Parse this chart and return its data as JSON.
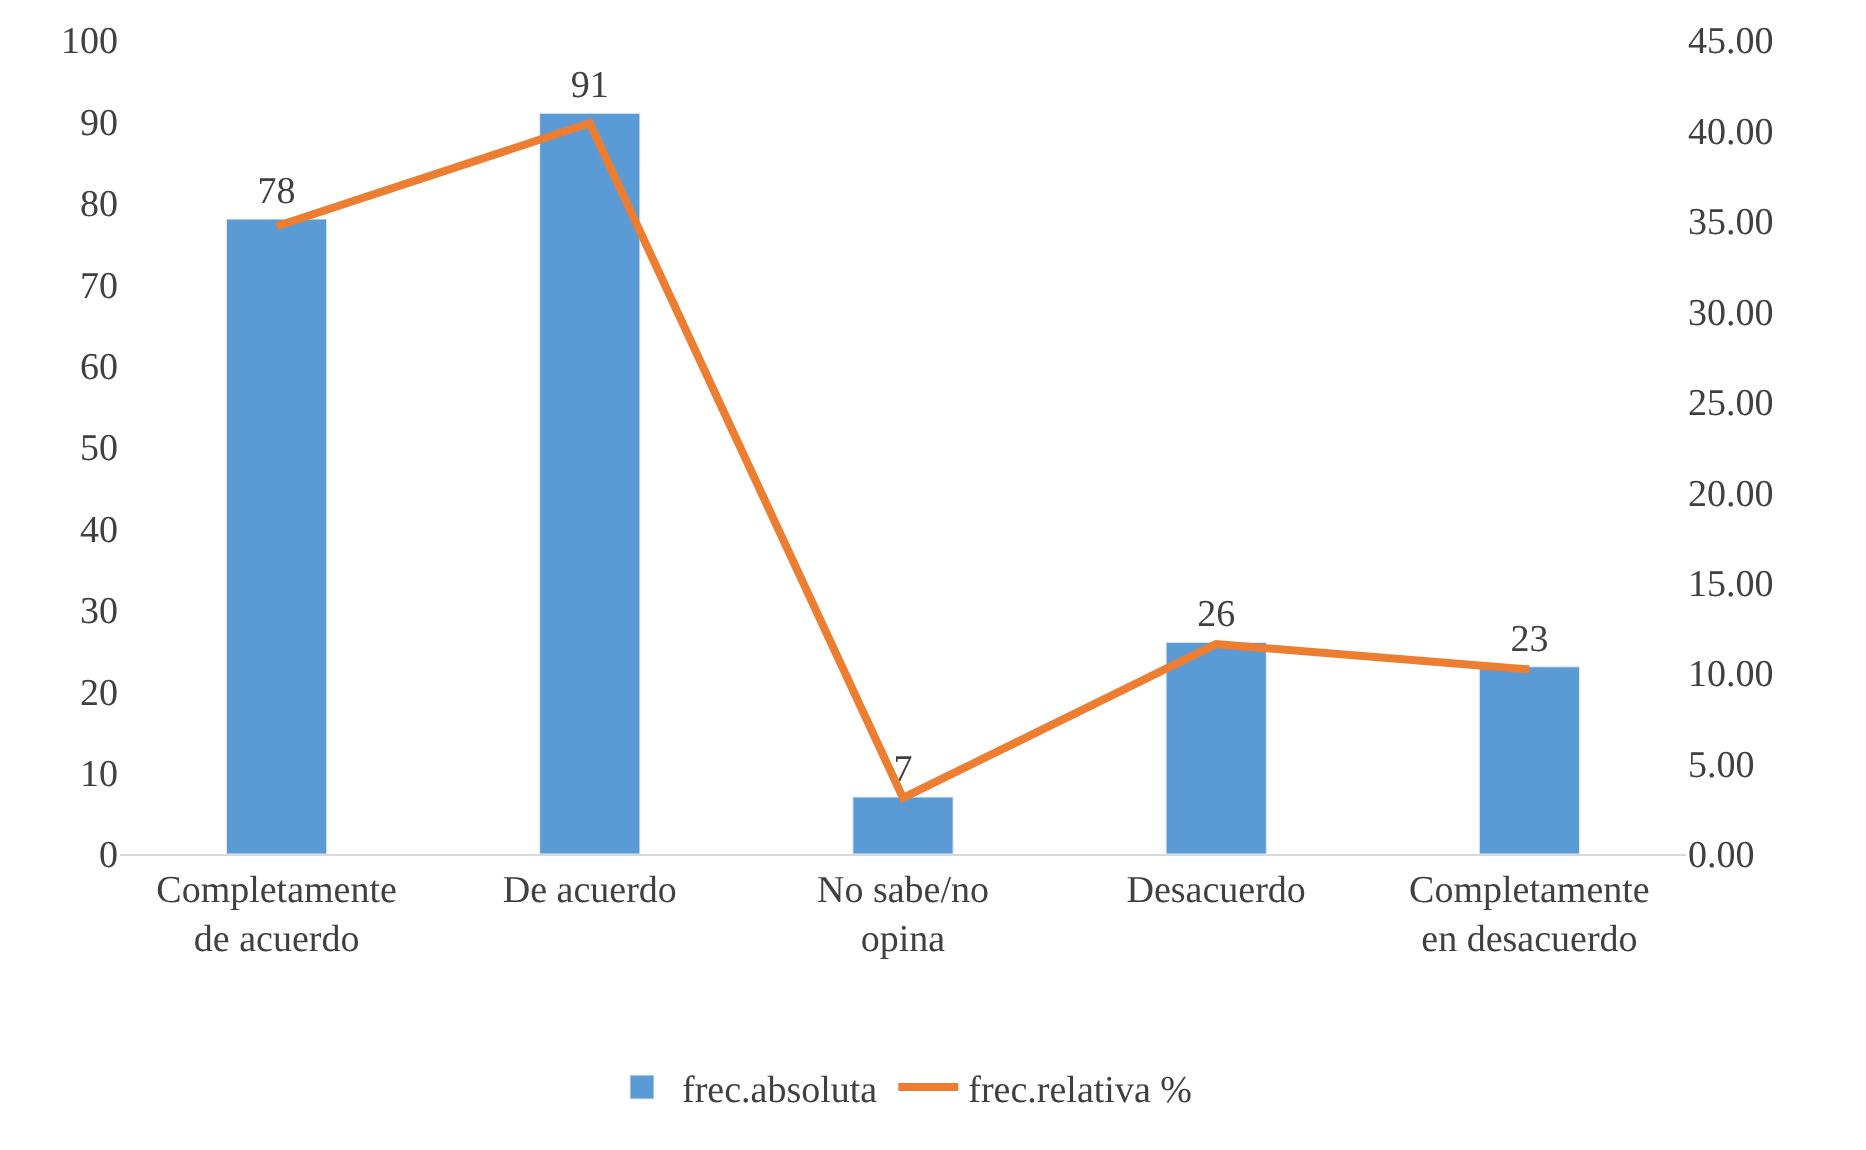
{
  "chart_data": {
    "type": "bar",
    "categories": [
      "Completamente\nde acuerdo",
      "De acuerdo",
      "No sabe/no\nopina",
      "Desacuerdo",
      "Completamente\nen desacuerdo"
    ],
    "series": [
      {
        "name": "frec.absoluta",
        "color": "#5b9bd5",
        "values": [
          78,
          91,
          7,
          26,
          23
        ],
        "value_labels": [
          "78",
          "91",
          "7",
          "26",
          "23"
        ]
      },
      {
        "name": "frec.relativa %",
        "type": "line",
        "axis": "y2",
        "color": "#ed7d31",
        "values": [
          34.7,
          40.4,
          3.1,
          11.6,
          10.2
        ]
      }
    ],
    "ylim": [
      0,
      100
    ],
    "yticks": [
      0,
      10,
      20,
      30,
      40,
      50,
      60,
      70,
      80,
      90,
      100
    ],
    "y2lim": [
      0,
      45
    ],
    "y2ticks": [
      {
        "value": 0,
        "label": "0.00"
      },
      {
        "value": 5,
        "label": "5.00"
      },
      {
        "value": 10,
        "label": "10.00"
      },
      {
        "value": 15,
        "label": "15.00"
      },
      {
        "value": 20,
        "label": "20.00"
      },
      {
        "value": 25,
        "label": "25.00"
      },
      {
        "value": 30,
        "label": "30.00"
      },
      {
        "value": 35,
        "label": "35.00"
      },
      {
        "value": 40,
        "label": "40.00"
      },
      {
        "value": 45,
        "label": "45.00"
      }
    ],
    "legend": "bottom",
    "marker": "none",
    "line_style": "solid"
  }
}
